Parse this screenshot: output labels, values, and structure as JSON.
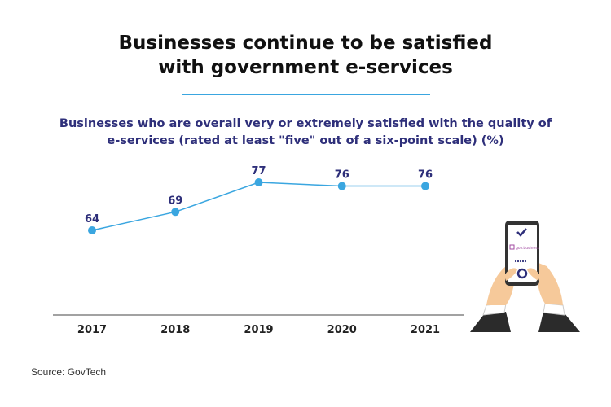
{
  "title_lines": [
    "Businesses continue to be satisfied",
    "with government e-services"
  ],
  "subtitle_lines": [
    "Businesses who are overall very or extremely satisfied with the quality of",
    "e-services (rated at least \"five\" out of a six-point scale) (%)"
  ],
  "source": "Source: GovTech",
  "colors": {
    "line": "#3aa6e0",
    "label": "#2e2f7a",
    "rule": "#3aa6e0",
    "axis": "#444444"
  },
  "illustration": {
    "app_logo_text": "gov.business",
    "icon": "phone-with-checkmark-icon"
  },
  "chart_data": {
    "type": "line",
    "categories": [
      "2017",
      "2018",
      "2019",
      "2020",
      "2021"
    ],
    "values": [
      64,
      69,
      77,
      76,
      76
    ],
    "data_labels": [
      "64",
      "69",
      "77",
      "76",
      "76"
    ],
    "title": "Businesses who are overall very or extremely satisfied with the quality of e-services (rated at least \"five\" out of a six-point scale) (%)",
    "xlabel": "",
    "ylabel": "",
    "grid": false,
    "legend": "none"
  }
}
